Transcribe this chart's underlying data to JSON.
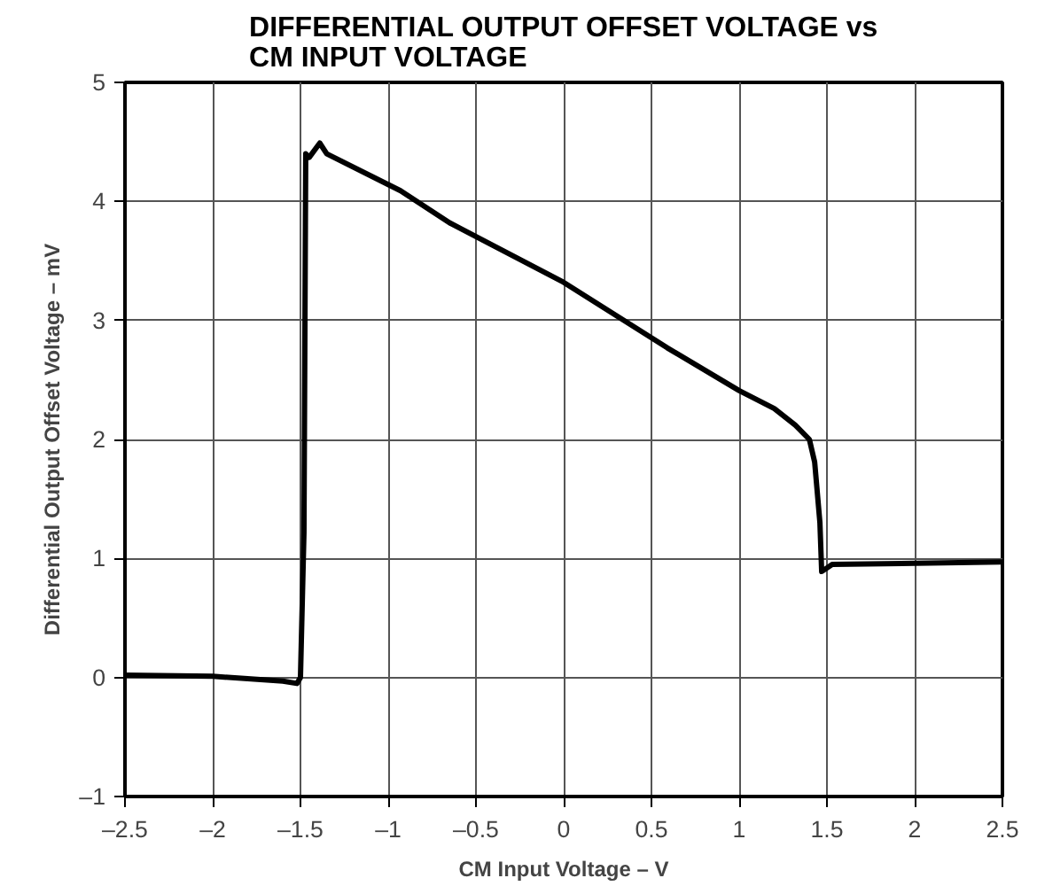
{
  "chart_data": {
    "type": "line",
    "title": "DIFFERENTIAL OUTPUT OFFSET VOLTAGE vs\nCM INPUT VOLTAGE",
    "xlabel": "CM Input Voltage – V",
    "ylabel": "Differential Output Offset Voltage – mV",
    "xlim": [
      -2.5,
      2.5
    ],
    "ylim": [
      -1,
      5
    ],
    "xticks": [
      {
        "value": -2.5,
        "label": "–2.5"
      },
      {
        "value": -2,
        "label": "–2"
      },
      {
        "value": -1.5,
        "label": "–1.5"
      },
      {
        "value": -1,
        "label": "–1"
      },
      {
        "value": -0.5,
        "label": "–0.5"
      },
      0,
      0.5,
      1,
      1.5,
      2,
      2.5
    ],
    "yticks": [
      {
        "value": -1,
        "label": "–1"
      },
      0,
      1,
      2,
      3,
      4,
      5
    ],
    "grid": true,
    "series": [
      {
        "color": "#000000",
        "x": [
          -2.5,
          -2.0,
          -1.6,
          -1.52,
          -1.5,
          -1.48,
          -1.47,
          -1.45,
          -1.39,
          -1.35,
          -0.93,
          -0.65,
          0,
          0.59,
          1.0,
          1.2,
          1.32,
          1.4,
          1.43,
          1.46,
          1.47,
          1.53,
          2.5
        ],
        "values": [
          0.02,
          0.01,
          -0.03,
          -0.05,
          0.0,
          1.22,
          4.4,
          4.37,
          4.49,
          4.4,
          4.09,
          3.82,
          3.32,
          2.77,
          2.41,
          2.26,
          2.12,
          2.0,
          1.81,
          1.3,
          0.89,
          0.95,
          0.97
        ]
      }
    ]
  }
}
